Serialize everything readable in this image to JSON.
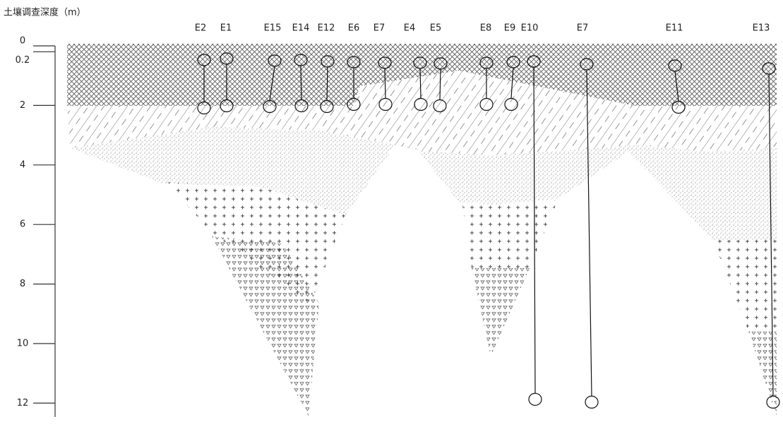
{
  "axis": {
    "title": "土壤调查深度（m）",
    "ticks": [
      0,
      0.2,
      2,
      4,
      6,
      8,
      10,
      12
    ]
  },
  "boreholes": [
    "E2",
    "E1",
    "E15",
    "E14",
    "E12",
    "E6",
    "E7",
    "E4",
    "E5",
    "E8",
    "E9",
    "E10",
    "E7",
    "E11",
    "E13"
  ]
}
